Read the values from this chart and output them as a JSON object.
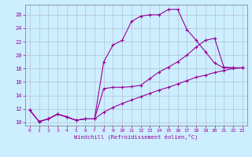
{
  "xlabel": "Windchill (Refroidissement éolien,°C)",
  "bg_color": "#cceeff",
  "line_color": "#990099",
  "grid_color": "#b0b8cc",
  "xlim": [
    -0.5,
    23.5
  ],
  "ylim": [
    9.5,
    27.5
  ],
  "xticks": [
    0,
    1,
    2,
    3,
    4,
    5,
    6,
    7,
    8,
    9,
    10,
    11,
    12,
    13,
    14,
    15,
    16,
    17,
    18,
    19,
    20,
    21,
    22,
    23
  ],
  "yticks": [
    10,
    12,
    14,
    16,
    18,
    20,
    22,
    24,
    26
  ],
  "line1_x": [
    0,
    1,
    2,
    3,
    4,
    5,
    6,
    7,
    8,
    9,
    10,
    11,
    12,
    13,
    14,
    15,
    16,
    17,
    18,
    19,
    20,
    21,
    22,
    23
  ],
  "line1_y": [
    11.8,
    10.1,
    10.5,
    11.2,
    10.8,
    10.3,
    10.5,
    10.5,
    19.0,
    21.5,
    22.2,
    25.0,
    25.8,
    26.0,
    26.0,
    26.8,
    26.8,
    23.8,
    22.2,
    20.5,
    18.8,
    18.1,
    18.1,
    18.1
  ],
  "line2_x": [
    0,
    1,
    2,
    3,
    4,
    5,
    6,
    7,
    8,
    9,
    10,
    11,
    12,
    13,
    14,
    15,
    16,
    17,
    18,
    19,
    20,
    21,
    22,
    23
  ],
  "line2_y": [
    11.8,
    10.1,
    10.5,
    11.2,
    10.8,
    10.3,
    10.5,
    10.5,
    15.0,
    15.2,
    15.2,
    15.3,
    15.5,
    16.5,
    17.5,
    18.2,
    19.0,
    20.0,
    21.2,
    22.2,
    22.5,
    18.2,
    18.1,
    18.1
  ],
  "line3_x": [
    0,
    1,
    2,
    3,
    4,
    5,
    6,
    7,
    8,
    9,
    10,
    11,
    12,
    13,
    14,
    15,
    16,
    17,
    18,
    19,
    20,
    21,
    22,
    23
  ],
  "line3_y": [
    11.8,
    10.1,
    10.5,
    11.2,
    10.8,
    10.3,
    10.5,
    10.5,
    11.5,
    12.2,
    12.8,
    13.3,
    13.8,
    14.3,
    14.8,
    15.2,
    15.7,
    16.2,
    16.7,
    17.0,
    17.4,
    17.7,
    18.0,
    18.1
  ]
}
